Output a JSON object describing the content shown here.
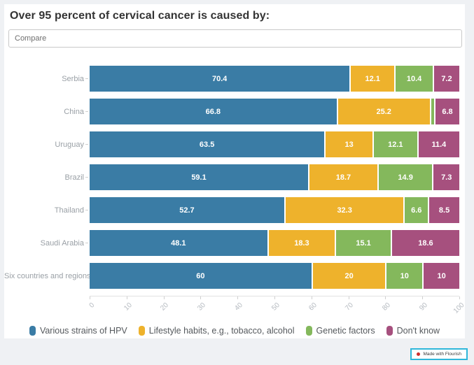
{
  "title": "Over 95 percent of cervical cancer is caused by:",
  "compare": {
    "placeholder": "Compare"
  },
  "footer": {
    "credit_label": "Made with Flourish"
  },
  "chart_data": {
    "type": "bar",
    "orientation": "horizontal",
    "stacked": true,
    "grid": false,
    "legend_position": "bottom",
    "title": "Over 95 percent of cervical cancer is caused by:",
    "xlabel": "",
    "ylabel": "",
    "xlim": [
      0,
      100
    ],
    "x_ticks": [
      "0",
      "10",
      "20",
      "30",
      "40",
      "50",
      "60",
      "70",
      "80",
      "90",
      "100"
    ],
    "categories": [
      "Serbia",
      "China",
      "Uruguay",
      "Brazil",
      "Thailand",
      "Saudi Arabia",
      "Six countries and regions"
    ],
    "series": [
      {
        "name": "Various strains of HPV",
        "color": "#3a7ca5",
        "values": [
          70.4,
          66.8,
          63.5,
          59.1,
          52.7,
          48.1,
          60
        ]
      },
      {
        "name": "Lifestyle habits, e.g., tobacco, alcohol",
        "color": "#eeb22c",
        "values": [
          12.1,
          25.2,
          13,
          18.7,
          32.3,
          18.3,
          20
        ]
      },
      {
        "name": "Genetic factors",
        "color": "#84b85c",
        "values": [
          10.4,
          1.2,
          12.1,
          14.9,
          6.6,
          15.1,
          10
        ]
      },
      {
        "name": "Don't know",
        "color": "#a6507e",
        "values": [
          7.2,
          6.8,
          11.4,
          7.3,
          8.5,
          18.6,
          10
        ]
      }
    ],
    "value_labels": [
      [
        "70.4",
        "12.1",
        "10.4",
        "7.2"
      ],
      [
        "66.8",
        "25.2",
        "",
        "6.8"
      ],
      [
        "63.5",
        "13",
        "12.1",
        "11.4"
      ],
      [
        "59.1",
        "18.7",
        "14.9",
        "7.3"
      ],
      [
        "52.7",
        "32.3",
        "6.6",
        "8.5"
      ],
      [
        "48.1",
        "18.3",
        "15.1",
        "18.6"
      ],
      [
        "60",
        "20",
        "10",
        "10"
      ]
    ]
  }
}
